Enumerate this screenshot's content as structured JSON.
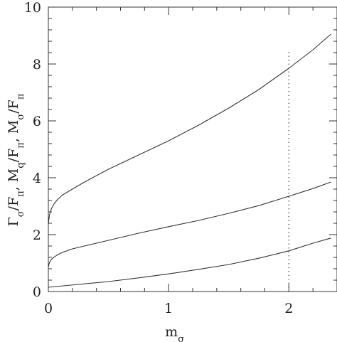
{
  "chart_data": {
    "type": "line",
    "title": "",
    "xlabel": "m",
    "xlabel_sub": "σ",
    "ylabel_parts": [
      {
        "t": "Γ"
      },
      {
        "t": "σ",
        "sub": true
      },
      {
        "t": "/F"
      },
      {
        "t": "π",
        "sub": true
      },
      {
        "t": ",  M"
      },
      {
        "t": "q",
        "sub": true
      },
      {
        "t": "/F"
      },
      {
        "t": "π",
        "sub": true
      },
      {
        "t": ",  M"
      },
      {
        "t": "σ",
        "sub": true
      },
      {
        "t": "/F"
      },
      {
        "t": "π",
        "sub": true
      }
    ],
    "xlim": [
      0,
      2.4
    ],
    "ylim": [
      0,
      10
    ],
    "x_ticks": [
      0,
      1,
      2
    ],
    "y_ticks": [
      0,
      2,
      4,
      6,
      8,
      10
    ],
    "grid": false,
    "series": [
      {
        "x": [
          0,
          0.005,
          0.01,
          0.02,
          0.03,
          0.05,
          0.08,
          0.12,
          0.2,
          0.3,
          0.5,
          0.75,
          1.0,
          1.25,
          1.5,
          1.75,
          2.0,
          2.2,
          2.35
        ],
        "y": [
          2.35,
          2.55,
          2.7,
          2.85,
          2.95,
          3.1,
          3.25,
          3.4,
          3.6,
          3.85,
          4.3,
          4.8,
          5.3,
          5.85,
          6.45,
          7.1,
          7.85,
          8.5,
          9.05
        ]
      },
      {
        "x": [
          0,
          0.005,
          0.01,
          0.02,
          0.03,
          0.05,
          0.08,
          0.12,
          0.2,
          0.3,
          0.5,
          0.75,
          1.0,
          1.25,
          1.5,
          1.75,
          2.0,
          2.2,
          2.35
        ],
        "y": [
          0.85,
          0.95,
          1.02,
          1.1,
          1.15,
          1.22,
          1.3,
          1.38,
          1.5,
          1.6,
          1.8,
          2.05,
          2.28,
          2.5,
          2.75,
          3.02,
          3.35,
          3.62,
          3.85
        ]
      },
      {
        "x": [
          0,
          0.25,
          0.5,
          0.75,
          1.0,
          1.25,
          1.5,
          1.75,
          2.0,
          2.2,
          2.35
        ],
        "y": [
          0.15,
          0.25,
          0.35,
          0.48,
          0.62,
          0.78,
          0.95,
          1.17,
          1.43,
          1.7,
          1.88
        ]
      }
    ],
    "reference_lines": [
      {
        "x": 2.0,
        "y_range": [
          0,
          8.5
        ],
        "style": "dotted"
      }
    ]
  }
}
